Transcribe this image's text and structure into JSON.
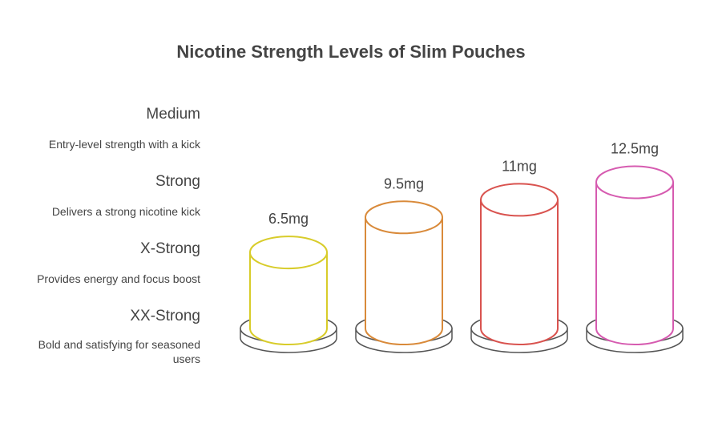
{
  "chart_data": {
    "type": "cylinder",
    "title": "Nicotine Strength Levels of Slim Pouches",
    "categories": [
      "Medium",
      "Strong",
      "X-Strong",
      "XX-Strong"
    ],
    "descriptions": [
      "Entry-level strength with a kick",
      "Delivers a strong nicotine kick",
      "Provides energy and focus boost",
      "Bold and satisfying for seasoned users"
    ],
    "values": [
      6.5,
      9.5,
      11,
      12.5
    ],
    "value_labels": [
      "6.5mg",
      "9.5mg",
      "11mg",
      "12.5mg"
    ],
    "colors": [
      "#d8cc2a",
      "#d98a3a",
      "#d9534f",
      "#d65bb0"
    ]
  }
}
